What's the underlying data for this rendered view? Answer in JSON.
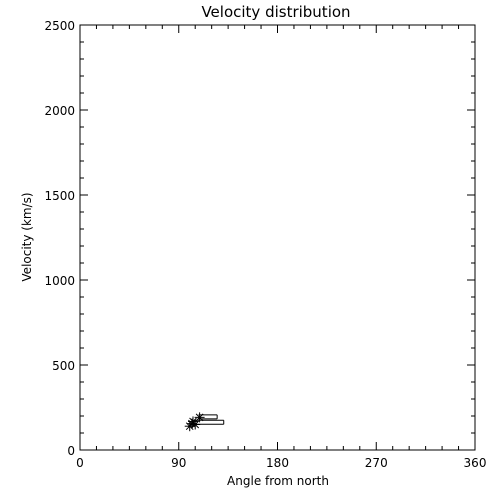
{
  "chart_data": {
    "type": "scatter",
    "title": "Velocity distribution",
    "xlabel": "Angle from north",
    "ylabel": "Velocity (km/s)",
    "xlim": [
      0,
      360
    ],
    "ylim": [
      0,
      2500
    ],
    "xticks": [
      "0",
      "90",
      "180",
      "270",
      "360"
    ],
    "yticks": [
      "0",
      "500",
      "1000",
      "1500",
      "2000",
      "2500"
    ],
    "grid": false,
    "points": [
      {
        "x": 100,
        "y": 140
      },
      {
        "x": 102,
        "y": 155
      },
      {
        "x": 103,
        "y": 168
      },
      {
        "x": 105,
        "y": 150
      },
      {
        "x": 109,
        "y": 192
      }
    ],
    "error_bars": [
      {
        "x_from": 104,
        "x_to": 131,
        "y": 163
      },
      {
        "x_from": 108,
        "x_to": 125,
        "y": 195
      }
    ]
  }
}
